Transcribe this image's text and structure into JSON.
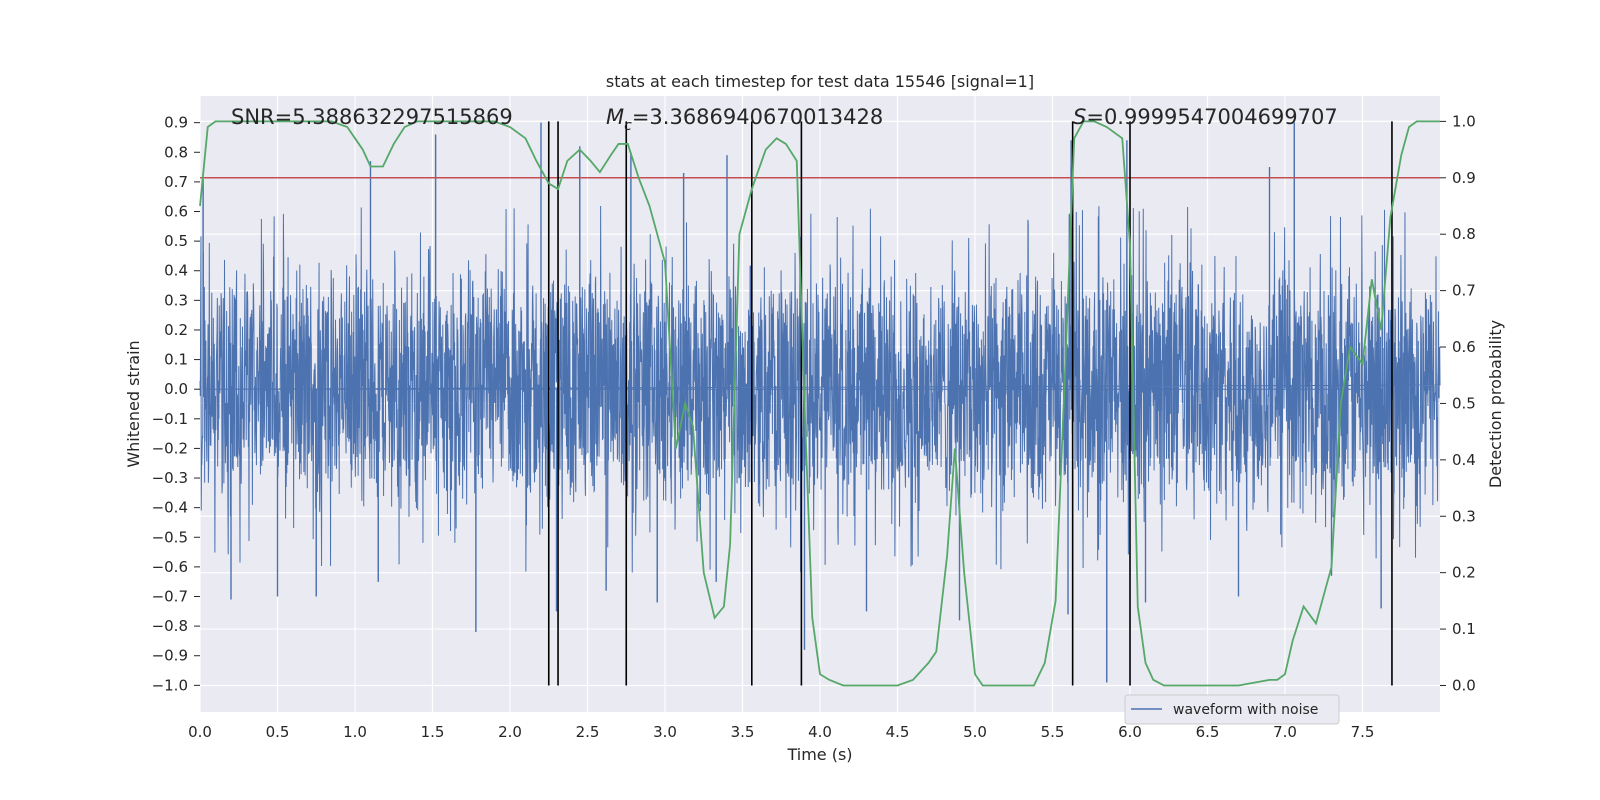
{
  "chart_data": {
    "type": "line",
    "title": "stats at each timestep for test data 15546 [signal=1]",
    "xlabel": "Time (s)",
    "ylabel": "Whitened strain",
    "y2label": "Detection probability",
    "xlim": [
      0.0,
      8.0
    ],
    "ylim": [
      -1.09,
      0.99
    ],
    "y2lim": [
      -0.047,
      1.045
    ],
    "xticks": [
      "0.0",
      "0.5",
      "1.0",
      "1.5",
      "2.0",
      "2.5",
      "3.0",
      "3.5",
      "4.0",
      "4.5",
      "5.0",
      "5.5",
      "6.0",
      "6.5",
      "7.0",
      "7.5"
    ],
    "xtick_values": [
      0.0,
      0.5,
      1.0,
      1.5,
      2.0,
      2.5,
      3.0,
      3.5,
      4.0,
      4.5,
      5.0,
      5.5,
      6.0,
      6.5,
      7.0,
      7.5
    ],
    "yticks": [
      "0.9",
      "0.8",
      "0.7",
      "0.6",
      "0.5",
      "0.4",
      "0.3",
      "0.2",
      "0.1",
      "0.0",
      "−0.1",
      "−0.2",
      "−0.3",
      "−0.4",
      "−0.5",
      "−0.6",
      "−0.7",
      "−0.8",
      "−0.9",
      "−1.0"
    ],
    "ytick_values": [
      0.9,
      0.8,
      0.7,
      0.6,
      0.5,
      0.4,
      0.3,
      0.2,
      0.1,
      0.0,
      -0.1,
      -0.2,
      -0.3,
      -0.4,
      -0.5,
      -0.6,
      -0.7,
      -0.8,
      -0.9,
      -1.0
    ],
    "y2ticks": [
      "1.0",
      "0.9",
      "0.8",
      "0.7",
      "0.6",
      "0.5",
      "0.4",
      "0.3",
      "0.2",
      "0.1",
      "0.0"
    ],
    "y2tick_values": [
      1.0,
      0.9,
      0.8,
      0.7,
      0.6,
      0.5,
      0.4,
      0.3,
      0.2,
      0.1,
      0.0
    ],
    "annotations": {
      "snr": "SNR=5.388632297515869",
      "mc_symbol": "M",
      "mc_sub": "c",
      "mc_value": "=3.3686940670013428",
      "s_symbol": "S",
      "s_value": "=0.9999547004699707"
    },
    "threshold": {
      "value": 0.9,
      "color": "#c44e52",
      "axis": "right"
    },
    "vertical_lines": [
      2.25,
      2.31,
      2.75,
      3.56,
      3.88,
      5.63,
      6.0,
      7.69
    ],
    "legend": {
      "label": "waveform with noise",
      "location": "lower-right"
    },
    "series": [
      {
        "name": "waveform with noise",
        "color": "#4c72b0",
        "type": "strain-noise",
        "envelope": 0.45,
        "spikes_time": [
          0.02,
          0.2,
          0.5,
          0.75,
          1.1,
          1.15,
          1.52,
          1.78,
          2.2,
          2.3,
          2.45,
          2.62,
          2.78,
          2.95,
          3.12,
          3.33,
          3.4,
          3.9,
          4.3,
          4.9,
          5.62,
          5.6,
          5.62,
          5.85,
          5.98,
          6.1,
          6.7,
          6.9,
          7.06,
          7.3,
          7.62
        ],
        "spikes_value": [
          0.71,
          -0.71,
          -0.7,
          -0.7,
          0.77,
          -0.65,
          0.86,
          -0.82,
          0.9,
          -0.75,
          0.82,
          -0.68,
          0.8,
          -0.72,
          0.73,
          -0.65,
          0.79,
          -0.88,
          -0.75,
          -0.78,
          0.75,
          -0.76,
          0.84,
          -0.99,
          0.84,
          -0.72,
          -0.7,
          0.75,
          0.9,
          -0.63,
          -0.74
        ]
      },
      {
        "name": "Detection probability",
        "color": "#55a868",
        "axis": "right",
        "x": [
          0.0,
          0.05,
          0.1,
          0.2,
          0.3,
          0.5,
          0.7,
          0.85,
          0.95,
          1.0,
          1.05,
          1.1,
          1.18,
          1.25,
          1.32,
          1.4,
          1.5,
          1.7,
          1.9,
          2.0,
          2.1,
          2.17,
          2.25,
          2.31,
          2.37,
          2.45,
          2.52,
          2.58,
          2.65,
          2.7,
          2.76,
          2.83,
          2.9,
          3.0,
          3.07,
          3.13,
          3.18,
          3.25,
          3.32,
          3.38,
          3.42,
          3.48,
          3.56,
          3.65,
          3.72,
          3.78,
          3.85,
          3.9,
          3.95,
          4.0,
          4.06,
          4.15,
          4.3,
          4.5,
          4.6,
          4.7,
          4.75,
          4.82,
          4.87,
          4.93,
          5.0,
          5.05,
          5.15,
          5.3,
          5.38,
          5.45,
          5.52,
          5.58,
          5.64,
          5.7,
          5.77,
          5.85,
          5.95,
          6.0,
          6.05,
          6.1,
          6.15,
          6.22,
          6.3,
          6.5,
          6.7,
          6.9,
          6.95,
          7.0,
          7.05,
          7.12,
          7.2,
          7.3,
          7.36,
          7.42,
          7.5,
          7.56,
          7.62,
          7.68,
          7.75,
          7.8,
          7.85,
          7.9,
          8.0
        ],
        "values": [
          0.85,
          0.99,
          1.0,
          1.0,
          1.0,
          1.0,
          1.0,
          1.0,
          0.99,
          0.97,
          0.95,
          0.92,
          0.92,
          0.96,
          0.99,
          1.0,
          1.0,
          1.0,
          1.0,
          0.99,
          0.97,
          0.93,
          0.89,
          0.88,
          0.93,
          0.95,
          0.93,
          0.91,
          0.94,
          0.96,
          0.96,
          0.9,
          0.85,
          0.75,
          0.42,
          0.5,
          0.46,
          0.2,
          0.12,
          0.14,
          0.25,
          0.8,
          0.88,
          0.95,
          0.97,
          0.96,
          0.93,
          0.5,
          0.12,
          0.02,
          0.01,
          0.0,
          0.0,
          0.0,
          0.01,
          0.04,
          0.06,
          0.23,
          0.42,
          0.2,
          0.02,
          0.0,
          0.0,
          0.0,
          0.0,
          0.04,
          0.15,
          0.55,
          0.97,
          1.0,
          1.0,
          0.99,
          0.97,
          0.78,
          0.14,
          0.04,
          0.01,
          0.0,
          0.0,
          0.0,
          0.0,
          0.01,
          0.01,
          0.02,
          0.08,
          0.14,
          0.11,
          0.21,
          0.5,
          0.6,
          0.57,
          0.72,
          0.63,
          0.83,
          0.94,
          0.99,
          1.0,
          1.0,
          1.0
        ]
      }
    ]
  }
}
